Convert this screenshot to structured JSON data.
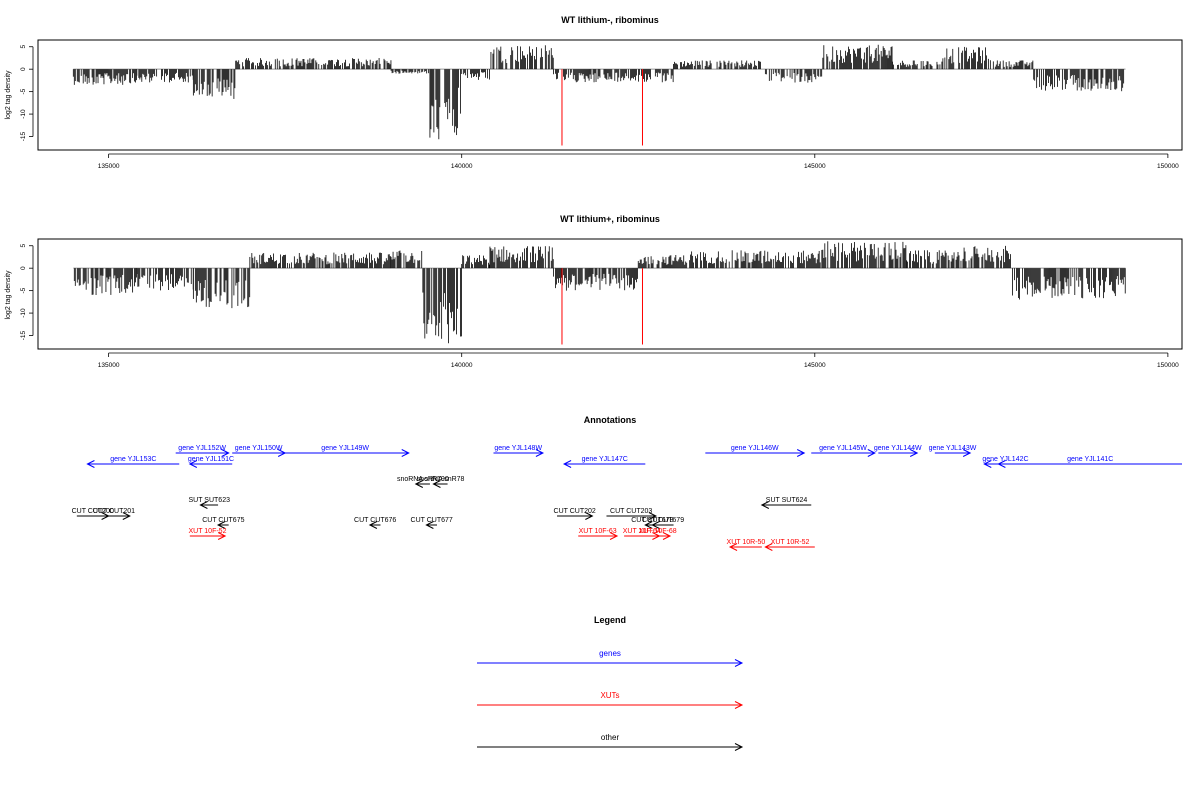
{
  "colors": {
    "gene": "#0000ff",
    "xut": "#ff0000",
    "other": "#000000",
    "marker": "#ff0000",
    "baseline": "#999999"
  },
  "chart_data": [
    {
      "type": "bar",
      "title": "WT lithium-, ribominus",
      "ylabel": "log2 tag density",
      "xlim": [
        134000,
        150200
      ],
      "ylim": [
        -18,
        6.5
      ],
      "xticks": [
        "135000",
        "140000",
        "145000",
        "150000"
      ],
      "yticks": [
        "5",
        "0",
        "-5",
        "-10",
        "-15"
      ],
      "x_range": [
        134500,
        149400
      ],
      "marker_lines_x": [
        141420,
        142560
      ],
      "marker_line_depth": -17,
      "profile": [
        {
          "x": [
            134500,
            135400
          ],
          "amp": -3.5
        },
        {
          "x": [
            135400,
            136200
          ],
          "amp": -3
        },
        {
          "x": [
            136200,
            136800
          ],
          "amp": -7
        },
        {
          "x": [
            136800,
            139000
          ],
          "amp": 2.5
        },
        {
          "x": [
            139000,
            139550
          ],
          "amp": -1
        },
        {
          "x": [
            139550,
            140000
          ],
          "amp": -16
        },
        {
          "x": [
            140000,
            140400
          ],
          "amp": -2.5
        },
        {
          "x": [
            140400,
            141300
          ],
          "amp": 5.5
        },
        {
          "x": [
            141300,
            143000
          ],
          "amp": -3
        },
        {
          "x": [
            143000,
            144300
          ],
          "amp": 2
        },
        {
          "x": [
            144300,
            145100
          ],
          "amp": -3
        },
        {
          "x": [
            145100,
            146100
          ],
          "amp": 5.5
        },
        {
          "x": [
            146100,
            146800
          ],
          "amp": 2
        },
        {
          "x": [
            146800,
            147500
          ],
          "amp": 5
        },
        {
          "x": [
            147500,
            148100
          ],
          "amp": 2
        },
        {
          "x": [
            148100,
            149400
          ],
          "amp": -5
        }
      ]
    },
    {
      "type": "bar",
      "title": "WT lithium+, ribominus",
      "ylabel": "log2 tag density",
      "xlim": [
        134000,
        150200
      ],
      "ylim": [
        -18,
        6.5
      ],
      "xticks": [
        "135000",
        "140000",
        "145000",
        "150000"
      ],
      "yticks": [
        "5",
        "0",
        "-5",
        "-10",
        "-15"
      ],
      "x_range": [
        134500,
        149400
      ],
      "marker_lines_x": [
        141420,
        142560
      ],
      "marker_line_depth": -17,
      "profile": [
        {
          "x": [
            134500,
            135400
          ],
          "amp": -6
        },
        {
          "x": [
            135400,
            136200
          ],
          "amp": -5
        },
        {
          "x": [
            136200,
            137000
          ],
          "amp": -9
        },
        {
          "x": [
            137000,
            139000
          ],
          "amp": 3.5
        },
        {
          "x": [
            139000,
            139450
          ],
          "amp": 4
        },
        {
          "x": [
            139450,
            140000
          ],
          "amp": -17
        },
        {
          "x": [
            140000,
            140400
          ],
          "amp": 3
        },
        {
          "x": [
            140400,
            141300
          ],
          "amp": 5
        },
        {
          "x": [
            141300,
            142500
          ],
          "amp": -5
        },
        {
          "x": [
            142500,
            143200
          ],
          "amp": 3
        },
        {
          "x": [
            143200,
            145100
          ],
          "amp": 4
        },
        {
          "x": [
            145100,
            146300
          ],
          "amp": 6
        },
        {
          "x": [
            146300,
            147100
          ],
          "amp": 4
        },
        {
          "x": [
            147100,
            147800
          ],
          "amp": 5
        },
        {
          "x": [
            147800,
            149400
          ],
          "amp": -7
        }
      ]
    }
  ],
  "annotations": {
    "title": "Annotations",
    "xlim": [
      134000,
      150200
    ],
    "rows": [
      {
        "cls": "gene",
        "items": [
          {
            "label": "gene YJL152W",
            "x1": 135950,
            "x2": 136700,
            "dir": ">"
          },
          {
            "label": "gene YJL150W",
            "x1": 136750,
            "x2": 137500,
            "dir": ">"
          },
          {
            "label": "gene YJL149W",
            "x1": 137450,
            "x2": 139250,
            "dir": ">"
          },
          {
            "label": "gene YJL148W",
            "x1": 140450,
            "x2": 141150,
            "dir": ">"
          },
          {
            "label": "gene YJL146W",
            "x1": 143450,
            "x2": 144850,
            "dir": ">"
          },
          {
            "label": "gene YJL145W",
            "x1": 144950,
            "x2": 145850,
            "dir": ">"
          },
          {
            "label": "gene YJL144W",
            "x1": 145900,
            "x2": 146450,
            "dir": ">"
          },
          {
            "label": "gene YJL143W",
            "x1": 146700,
            "x2": 147200,
            "dir": ">"
          }
        ]
      },
      {
        "cls": "gene",
        "items": [
          {
            "label": "gene YJL153C",
            "x1": 134700,
            "x2": 136000,
            "dir": "<"
          },
          {
            "label": "gene YJL151C",
            "x1": 136150,
            "x2": 136750,
            "dir": "<"
          },
          {
            "label": "gene YJL147C",
            "x1": 141450,
            "x2": 142600,
            "dir": "<"
          },
          {
            "label": "gene YJL142C",
            "x1": 147400,
            "x2": 148000,
            "dir": "<"
          },
          {
            "label": "gene YJL141C",
            "x1": 147600,
            "x2": 150200,
            "dir": "<"
          }
        ]
      },
      {
        "cls": "other",
        "items": [
          {
            "label": "snoRNA snR190",
            "x1": 139350,
            "x2": 139550,
            "dir": "<"
          },
          {
            "label": "snoRNA snR78",
            "x1": 139600,
            "x2": 139800,
            "dir": "<"
          }
        ]
      },
      {
        "cls": "other",
        "items": [
          {
            "label": "SUT SUT623",
            "x1": 136300,
            "x2": 136550,
            "dir": "<"
          },
          {
            "label": "SUT SUT624",
            "x1": 144250,
            "x2": 144950,
            "dir": "<"
          }
        ]
      },
      {
        "cls": "other",
        "items": [
          {
            "label": "CUT CUT200",
            "x1": 134550,
            "x2": 135000,
            "dir": ">"
          },
          {
            "label": "CUT CUT201",
            "x1": 134850,
            "x2": 135300,
            "dir": ">"
          },
          {
            "label": "CUT CUT202",
            "x1": 141350,
            "x2": 141850,
            "dir": ">"
          },
          {
            "label": "CUT CUT203",
            "x1": 142050,
            "x2": 142750,
            "dir": ">"
          }
        ]
      },
      {
        "cls": "other",
        "items": [
          {
            "label": "CUT CUT675",
            "x1": 136550,
            "x2": 136700,
            "dir": "<"
          },
          {
            "label": "CUT CUT676",
            "x1": 138700,
            "x2": 138850,
            "dir": "<"
          },
          {
            "label": "CUT CUT677",
            "x1": 139500,
            "x2": 139650,
            "dir": "<"
          },
          {
            "label": "CUT CUT678",
            "x1": 142600,
            "x2": 142800,
            "dir": "<"
          },
          {
            "label": "CUT CUT679",
            "x1": 142700,
            "x2": 143000,
            "dir": "<"
          }
        ]
      },
      {
        "cls": "xut",
        "items": [
          {
            "label": "XUT 10F-52",
            "x1": 136150,
            "x2": 136650,
            "dir": ">"
          },
          {
            "label": "XUT 10F-63",
            "x1": 141650,
            "x2": 142200,
            "dir": ">"
          },
          {
            "label": "XUT 10F-64",
            "x1": 142300,
            "x2": 142800,
            "dir": ">"
          },
          {
            "label": "XUT 10F-68",
            "x1": 142600,
            "x2": 142950,
            "dir": ">"
          }
        ]
      },
      {
        "cls": "xut",
        "items": [
          {
            "label": "XUT 10R-50",
            "x1": 143800,
            "x2": 144250,
            "dir": "<"
          },
          {
            "label": "XUT 10R-52",
            "x1": 144300,
            "x2": 145000,
            "dir": "<"
          }
        ]
      }
    ]
  },
  "legend": {
    "title": "Legend",
    "items": [
      {
        "label": "genes",
        "cls": "gene"
      },
      {
        "label": "XUTs",
        "cls": "xut"
      },
      {
        "label": "other",
        "cls": "other"
      }
    ]
  }
}
